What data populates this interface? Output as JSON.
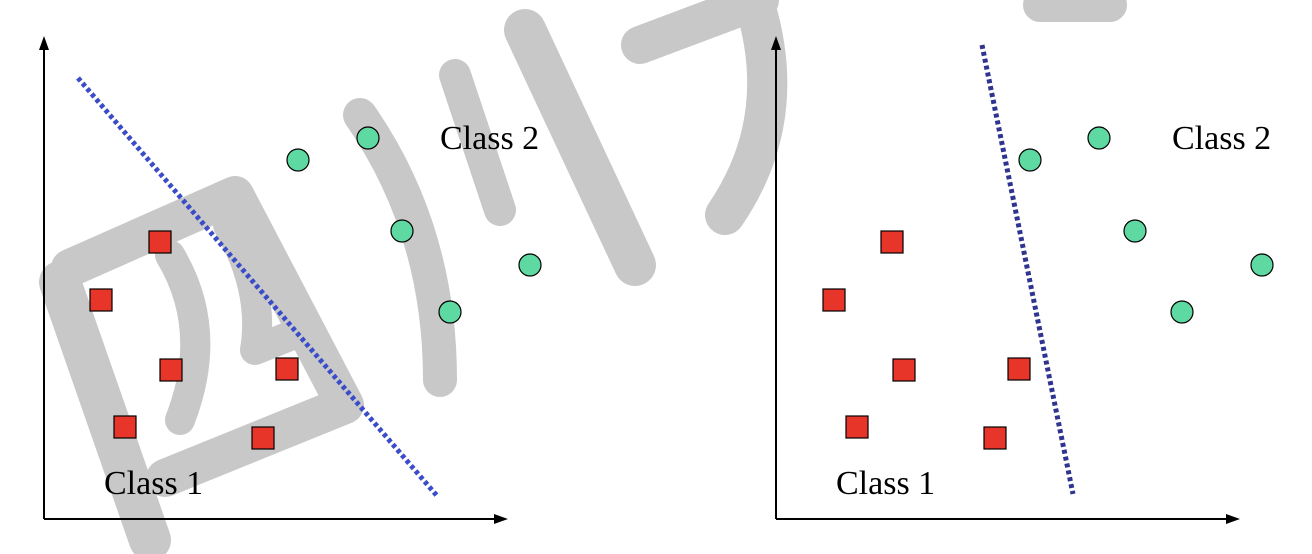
{
  "panels": [
    {
      "id": "left",
      "class1_label": "Class 1",
      "class2_label": "Class 2",
      "class1_points": [
        [
          160,
          242
        ],
        [
          101,
          300
        ],
        [
          171,
          370
        ],
        [
          287,
          369
        ],
        [
          125,
          427
        ],
        [
          263,
          438
        ]
      ],
      "class2_points": [
        [
          298,
          160
        ],
        [
          368,
          138
        ],
        [
          402,
          231
        ],
        [
          530,
          265
        ],
        [
          450,
          312
        ]
      ],
      "separator": [
        [
          78,
          78
        ],
        [
          438,
          497
        ]
      ]
    },
    {
      "id": "right",
      "class1_label": "Class 1",
      "class2_label": "Class 2",
      "class1_points": [
        [
          892,
          242
        ],
        [
          834,
          300
        ],
        [
          904,
          370
        ],
        [
          1019,
          369
        ],
        [
          857,
          427
        ],
        [
          995,
          438
        ]
      ],
      "class2_points": [
        [
          1030,
          160
        ],
        [
          1099,
          138
        ],
        [
          1135,
          231
        ],
        [
          1262,
          265
        ],
        [
          1182,
          312
        ]
      ],
      "separator": [
        [
          982,
          45
        ],
        [
          1073,
          494
        ]
      ]
    }
  ],
  "watermark": {
    "text": "四川大学",
    "color": "#c8c8c8"
  },
  "colors": {
    "class1_fill": "#e8352a",
    "class2_fill": "#5fd9a2",
    "separator_left": "#3a4cc8",
    "separator_right": "#2e3490",
    "axis": "#000000"
  }
}
